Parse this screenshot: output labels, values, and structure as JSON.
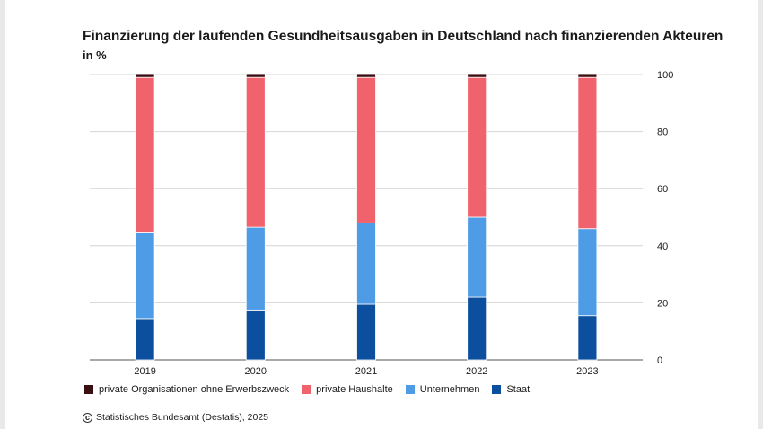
{
  "title": "Finanzierung der laufenden Gesundheitsausgaben in Deutschland nach finanzierenden Akteuren",
  "subtitle": "in %",
  "source": "Statistisches Bundesamt (Destatis), 2025",
  "source_icon": "cc-icon",
  "chart_data": {
    "type": "bar",
    "stacked": true,
    "title": "Finanzierung der laufenden Gesundheitsausgaben in Deutschland nach finanzierenden Akteuren",
    "subtitle": "in %",
    "xlabel": "",
    "ylabel": "",
    "ylim": [
      0,
      100
    ],
    "yticks": [
      0,
      20,
      40,
      60,
      80,
      100
    ],
    "y_axis_side": "right",
    "grid": true,
    "legend_position": "bottom",
    "categories": [
      "2019",
      "2020",
      "2021",
      "2022",
      "2023"
    ],
    "series": [
      {
        "name": "Staat",
        "color": "#0b4f9e",
        "values": [
          14.5,
          17.5,
          19.5,
          22.0,
          15.5
        ]
      },
      {
        "name": "Unternehmen",
        "color": "#4e9be6",
        "values": [
          30.0,
          29.0,
          28.5,
          28.0,
          30.5
        ]
      },
      {
        "name": "private Haushalte",
        "color": "#f0636c",
        "values": [
          54.5,
          52.5,
          51.0,
          49.0,
          53.0
        ]
      },
      {
        "name": "private Organisationen ohne Erwerbszweck",
        "color": "#3a0f12",
        "values": [
          1.0,
          1.0,
          1.0,
          1.0,
          1.0
        ]
      }
    ],
    "legend_order": [
      "private Organisationen ohne Erwerbszweck",
      "private Haushalte",
      "Unternehmen",
      "Staat"
    ]
  }
}
